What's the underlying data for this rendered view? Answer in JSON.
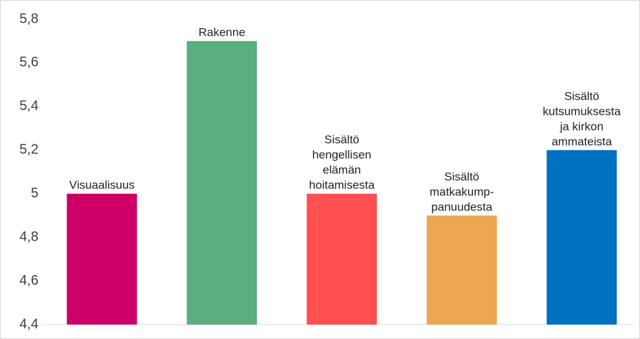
{
  "chart_data": {
    "type": "bar",
    "categories": [
      "Visuaalisuus",
      "Rakenne",
      "Sisältö\nhengellisen\nelämän\nhoitamisesta",
      "Sisältö\nmatkakump-\npanuudesta",
      "Sisältö\nkutsumuksesta\nja kirkon\nammateista"
    ],
    "values": [
      5.0,
      5.7,
      5.0,
      4.9,
      5.2
    ],
    "colors": [
      "#cc0066",
      "#5bae7d",
      "#ff4f4f",
      "#eba64f",
      "#0070c0"
    ],
    "ylim": [
      4.4,
      5.8
    ],
    "yticks": [
      {
        "value": 4.4,
        "label": "4,4"
      },
      {
        "value": 4.6,
        "label": "4,6"
      },
      {
        "value": 4.8,
        "label": "4,8"
      },
      5,
      {
        "value": 5.2,
        "label": "5,2"
      },
      {
        "value": 5.4,
        "label": "5,4"
      },
      {
        "value": 5.6,
        "label": "5,6"
      },
      {
        "value": 5.8,
        "label": "5,8"
      }
    ],
    "grid": false
  }
}
